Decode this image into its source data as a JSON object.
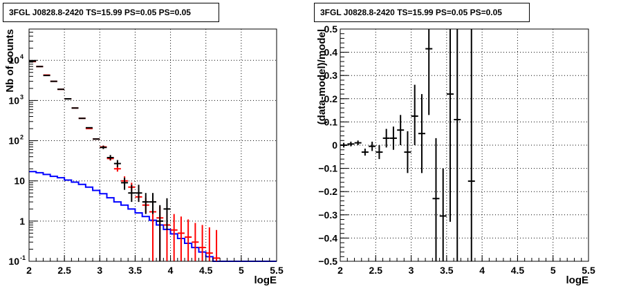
{
  "chart_data": [
    {
      "type": "line",
      "title": "3FGL J0828.8-2420 TS=15.99 PS=0.05 PS=0.05",
      "xlabel": "logE",
      "ylabel": "Nb of counts",
      "xlim": [
        2,
        5.5
      ],
      "ylim": [
        0.1,
        60000
      ],
      "yscale": "log",
      "grid": true,
      "xticks": [
        "2",
        "2.5",
        "3",
        "3.5",
        "4",
        "4.5",
        "5",
        "5.5"
      ],
      "yticks": [
        {
          "value": 0.1,
          "label": "10",
          "exp": "-1"
        },
        {
          "value": 1,
          "label": "1",
          "exp": ""
        },
        {
          "value": 10,
          "label": "10",
          "exp": ""
        },
        {
          "value": 100,
          "label": "10",
          "exp": "2"
        },
        {
          "value": 1000,
          "label": "10",
          "exp": "3"
        },
        {
          "value": 10000,
          "label": "10",
          "exp": "4"
        }
      ],
      "series": [
        {
          "color": "#000000",
          "kind": "points",
          "x": [
            2.05,
            2.15,
            2.25,
            2.35,
            2.45,
            2.55,
            2.65,
            2.75,
            2.85,
            2.95,
            3.05,
            3.15,
            3.25,
            3.35,
            3.45,
            3.55,
            3.65,
            3.75,
            3.85,
            3.95
          ],
          "y": [
            9500,
            7000,
            4200,
            3000,
            1900,
            1100,
            650,
            360,
            210,
            110,
            68,
            38,
            27,
            9,
            5,
            5,
            3,
            3,
            1,
            2
          ],
          "ylow": [
            9500,
            7000,
            4200,
            3000,
            1900,
            1100,
            650,
            360,
            210,
            110,
            62,
            33,
            22,
            6,
            3,
            3,
            1.5,
            1.5,
            0.1,
            0.6
          ],
          "yhigh": [
            9500,
            7000,
            4200,
            3000,
            1900,
            1100,
            650,
            360,
            210,
            110,
            75,
            44,
            33,
            12,
            8,
            8,
            5,
            5,
            2.5,
            3.7
          ]
        },
        {
          "color": "#ff0000",
          "kind": "points",
          "x": [
            2.05,
            2.15,
            2.25,
            2.35,
            2.45,
            2.55,
            2.65,
            2.75,
            2.85,
            2.95,
            3.05,
            3.15,
            3.25,
            3.35,
            3.45,
            3.55,
            3.65,
            3.75,
            3.85,
            3.95,
            4.05,
            4.15,
            4.25,
            4.35,
            4.45,
            4.55,
            4.65
          ],
          "y": [
            9300,
            7000,
            4300,
            3000,
            1900,
            1100,
            650,
            360,
            200,
            110,
            70,
            36,
            20,
            10,
            7,
            4,
            2.5,
            1.7,
            1.2,
            0.8,
            0.6,
            0.5,
            0.4,
            0.3,
            0.22,
            0.16,
            0.12
          ],
          "ylow": [
            9300,
            7000,
            4300,
            3000,
            1900,
            1100,
            650,
            360,
            200,
            110,
            64,
            32,
            17,
            8,
            5.5,
            3,
            1.6,
            0.1,
            0.1,
            0.1,
            0.1,
            0.1,
            0.1,
            0.1,
            0.1,
            0.1,
            0.1
          ],
          "yhigh": [
            9300,
            7000,
            4300,
            3000,
            1900,
            1100,
            650,
            360,
            200,
            110,
            76,
            40,
            24,
            13,
            9,
            5.5,
            3.8,
            2.8,
            2.3,
            1.8,
            1.5,
            1.3,
            1.1,
            0.9,
            0.8,
            0.7,
            0.6
          ]
        },
        {
          "color": "#0000ff",
          "kind": "step",
          "edges": [
            2.0,
            2.1,
            2.2,
            2.3,
            2.4,
            2.5,
            2.6,
            2.7,
            2.8,
            2.9,
            3.0,
            3.1,
            3.2,
            3.3,
            3.4,
            3.5,
            3.6,
            3.7,
            3.8,
            3.9,
            4.0,
            4.1,
            4.2,
            4.3,
            4.4,
            4.5,
            4.6,
            4.7,
            4.8,
            4.9,
            5.0,
            5.1,
            5.2,
            5.3,
            5.4,
            5.5
          ],
          "values": [
            17,
            16,
            14.5,
            13,
            12,
            10.5,
            9.3,
            8.2,
            7,
            5.8,
            4.8,
            3.8,
            3,
            2.5,
            2.0,
            1.6,
            1.3,
            1.05,
            0.8,
            0.62,
            0.48,
            0.37,
            0.28,
            0.22,
            0.17,
            0.13,
            0.1,
            0.1,
            0.1,
            0.1,
            0.1,
            0.1,
            0.1,
            0.1,
            0.1
          ]
        }
      ]
    },
    {
      "type": "scatter",
      "title": "3FGL J0828.8-2420 TS=15.99 PS=0.05 PS=0.05",
      "xlabel": "logE",
      "ylabel": "(data-model)/model",
      "xlim": [
        2,
        5.5
      ],
      "ylim": [
        -0.5,
        0.5
      ],
      "grid": true,
      "xticks": [
        "2",
        "2.5",
        "3",
        "3.5",
        "4",
        "4.5",
        "5",
        "5.5"
      ],
      "yticks": [
        "-0.5",
        "-0.4",
        "-0.3",
        "-0.2",
        "-0.1",
        "0",
        "0.1",
        "0.2",
        "0.3",
        "0.4",
        "0.5"
      ],
      "series": [
        {
          "color": "#000000",
          "x": [
            2.05,
            2.15,
            2.25,
            2.35,
            2.45,
            2.55,
            2.65,
            2.75,
            2.85,
            2.95,
            3.05,
            3.15,
            3.25,
            3.35,
            3.45,
            3.55,
            3.65,
            3.85
          ],
          "y": [
            0.0,
            0.005,
            0.01,
            -0.03,
            -0.005,
            -0.03,
            0.03,
            0.03,
            0.065,
            -0.03,
            0.125,
            0.05,
            0.415,
            -0.23,
            -0.305,
            0.22,
            0.11,
            -0.155
          ],
          "ylow": [
            -0.01,
            -0.005,
            0.0,
            -0.045,
            -0.025,
            -0.06,
            -0.01,
            -0.02,
            0.0,
            -0.12,
            0.0,
            -0.12,
            0.13,
            -0.5,
            -0.5,
            -0.33,
            -0.5,
            -0.5
          ],
          "yhigh": [
            0.01,
            0.015,
            0.02,
            -0.015,
            0.015,
            0.0,
            0.07,
            0.08,
            0.13,
            0.06,
            0.26,
            0.22,
            0.5,
            0.03,
            -0.1,
            0.5,
            0.5,
            0.5
          ]
        }
      ]
    }
  ]
}
